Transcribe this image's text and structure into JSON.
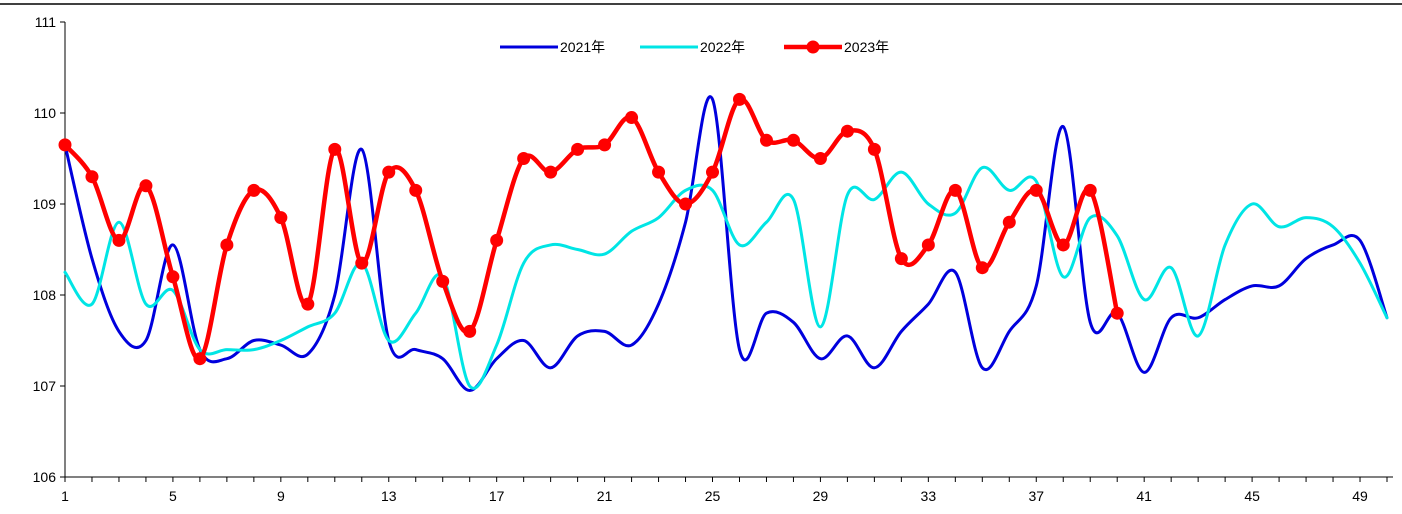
{
  "chart_data": {
    "type": "line",
    "title": "",
    "xlabel": "",
    "ylabel": "",
    "xlim": [
      1,
      50
    ],
    "ylim": [
      106,
      111
    ],
    "yticks": [
      106,
      107,
      108,
      109,
      110,
      111
    ],
    "xticks": [
      1,
      5,
      9,
      13,
      17,
      21,
      25,
      29,
      33,
      37,
      41,
      45,
      49
    ],
    "grid": false,
    "legend_position": "top-center",
    "series": [
      {
        "name": "2021年",
        "color": "#0000DD",
        "markers": false,
        "x": [
          1,
          2,
          3,
          4,
          5,
          6,
          7,
          8,
          9,
          10,
          11,
          12,
          13,
          14,
          15,
          16,
          17,
          18,
          19,
          20,
          21,
          22,
          23,
          24,
          25,
          26,
          27,
          28,
          29,
          30,
          31,
          32,
          33,
          34,
          35,
          36,
          37,
          38,
          39,
          40,
          41,
          42,
          43,
          44,
          45,
          46,
          47,
          48,
          49,
          50
        ],
        "values": [
          109.65,
          108.4,
          107.6,
          107.5,
          108.55,
          107.4,
          107.3,
          107.5,
          107.45,
          107.35,
          108.0,
          109.6,
          107.5,
          107.4,
          107.3,
          106.95,
          107.3,
          107.5,
          107.2,
          107.55,
          107.6,
          107.45,
          107.9,
          108.8,
          110.15,
          107.4,
          107.8,
          107.7,
          107.3,
          107.55,
          107.2,
          107.6,
          107.9,
          108.25,
          107.2,
          107.6,
          108.1,
          109.85,
          107.7,
          107.8,
          107.15,
          107.75,
          107.75,
          107.95,
          108.1,
          108.1,
          108.4,
          108.55,
          108.6,
          107.75
        ]
      },
      {
        "name": "2022年",
        "color": "#00E5E5",
        "markers": false,
        "x": [
          1,
          2,
          3,
          4,
          5,
          6,
          7,
          8,
          9,
          10,
          11,
          12,
          13,
          14,
          15,
          16,
          17,
          18,
          19,
          20,
          21,
          22,
          23,
          24,
          25,
          26,
          27,
          28,
          29,
          30,
          31,
          32,
          33,
          34,
          35,
          36,
          37,
          38,
          39,
          40,
          41,
          42,
          43,
          44,
          45,
          46,
          47,
          48,
          49,
          50
        ],
        "values": [
          108.25,
          107.9,
          108.8,
          107.9,
          108.05,
          107.4,
          107.4,
          107.4,
          107.5,
          107.65,
          107.8,
          108.35,
          107.5,
          107.8,
          108.2,
          107.0,
          107.45,
          108.35,
          108.55,
          108.5,
          108.45,
          108.7,
          108.85,
          109.15,
          109.15,
          108.55,
          108.8,
          109.05,
          107.65,
          109.1,
          109.05,
          109.35,
          109.0,
          108.9,
          109.4,
          109.15,
          109.25,
          108.2,
          108.85,
          108.65,
          107.95,
          108.3,
          107.55,
          108.55,
          109.0,
          108.75,
          108.85,
          108.75,
          108.35,
          107.75
        ]
      },
      {
        "name": "2023年",
        "color": "#FF0000",
        "markers": true,
        "x": [
          1,
          2,
          3,
          4,
          5,
          6,
          7,
          8,
          9,
          10,
          11,
          12,
          13,
          14,
          15,
          16,
          17,
          18,
          19,
          20,
          21,
          22,
          23,
          24,
          25,
          26,
          27,
          28,
          29,
          30,
          31,
          32,
          33,
          34,
          35,
          36,
          37,
          38,
          39,
          40
        ],
        "values": [
          109.65,
          109.3,
          108.6,
          109.2,
          108.2,
          107.3,
          108.55,
          109.15,
          108.85,
          107.9,
          109.6,
          108.35,
          109.35,
          109.15,
          108.15,
          107.6,
          108.6,
          109.5,
          109.35,
          109.6,
          109.65,
          109.95,
          109.35,
          109.0,
          109.35,
          110.15,
          109.7,
          109.7,
          109.5,
          109.8,
          109.6,
          108.4,
          108.55,
          109.15,
          108.3,
          108.8,
          109.15,
          108.55,
          109.15,
          107.8
        ]
      }
    ]
  }
}
